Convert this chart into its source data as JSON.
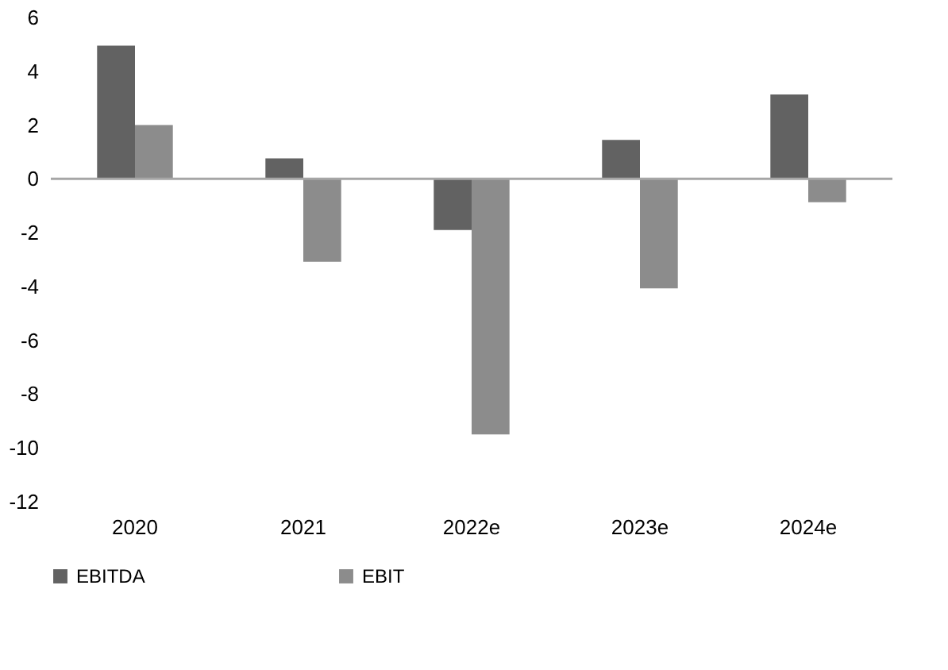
{
  "chart_data": {
    "type": "bar",
    "categories": [
      "2020",
      "2021",
      "2022e",
      "2023e",
      "2024e"
    ],
    "series": [
      {
        "name": "EBITDA",
        "color": "#626262",
        "values": [
          4.95,
          0.76,
          -1.9,
          1.45,
          3.14
        ]
      },
      {
        "name": "EBIT",
        "color": "#8c8c8c",
        "values": [
          2.0,
          -3.08,
          -9.5,
          -4.07,
          -0.87
        ]
      }
    ],
    "ylim": [
      -12,
      6
    ],
    "yticks": [
      -12,
      -10,
      -8,
      -6,
      -4,
      -2,
      0,
      2,
      4,
      6
    ],
    "grid": false,
    "legend": "bottom",
    "ref_lines": [
      {
        "axis": "y",
        "value": 0,
        "color": "#a6a6a6"
      }
    ]
  }
}
